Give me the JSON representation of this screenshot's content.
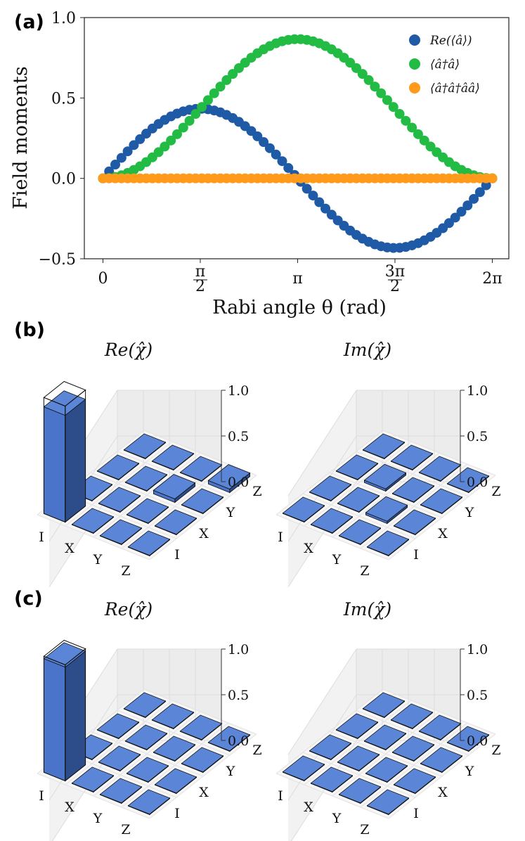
{
  "panels": {
    "a": "(a)",
    "b": "(b)",
    "c": "(c)"
  },
  "chart_data": [
    {
      "type": "scatter",
      "panel": "(a)",
      "xlabel": "Rabi angle θ (rad)",
      "ylabel": "Field moments",
      "xlim": [
        -0.3,
        6.55
      ],
      "ylim": [
        -0.5,
        1.0
      ],
      "xticks": [
        {
          "value": 0,
          "label": "0"
        },
        {
          "value": 1.5708,
          "label": "π/2"
        },
        {
          "value": 3.1416,
          "label": "π"
        },
        {
          "value": 4.7124,
          "label": "3π/2"
        },
        {
          "value": 6.2832,
          "label": "2π"
        }
      ],
      "yticks": [
        {
          "value": -0.5,
          "label": "−0.5"
        },
        {
          "value": 0.0,
          "label": "0.0"
        },
        {
          "value": 0.5,
          "label": "0.5"
        },
        {
          "value": 1.0,
          "label": "1.0"
        }
      ],
      "legend_position": "top-right",
      "n_points": 64,
      "series": [
        {
          "name": "Re(⟨â⟩)",
          "color": "#1f5aa6",
          "formula": "0.433*sin(theta)",
          "description": "amplitude ≈ 0.43, peaks near θ≈1.6, zero near π, minimum ≈ −0.43 near 3π/2"
        },
        {
          "name": "⟨â†â⟩",
          "color": "#22bb44",
          "formula": "0.866*sin(theta/2)^2",
          "description": "rises from 0 to ≈0.87 at π, returns to 0 at 2π"
        },
        {
          "name": "⟨â†â†ââ⟩",
          "color": "#ff9a1a",
          "formula": "0",
          "description": "≈ 0 everywhere"
        }
      ]
    },
    {
      "type": "bar3d",
      "panel": "(b)",
      "title": "Re(χ̂)",
      "x_categories": [
        "I",
        "X",
        "Y",
        "Z"
      ],
      "y_categories": [
        "I",
        "X",
        "Y",
        "Z"
      ],
      "zticks": [
        "0.0",
        "0.5",
        "1.0"
      ],
      "zlim": [
        0,
        1
      ],
      "values": [
        [
          0.92,
          0,
          0,
          0
        ],
        [
          0,
          0,
          0,
          0
        ],
        [
          0,
          0,
          0.03,
          0
        ],
        [
          0,
          0,
          0,
          0.03
        ]
      ],
      "ideal_values": [
        [
          1,
          0,
          0,
          0
        ],
        [
          0,
          0,
          0,
          0
        ],
        [
          0,
          0,
          0,
          0
        ],
        [
          0,
          0,
          0,
          0
        ]
      ]
    },
    {
      "type": "bar3d",
      "panel": "(b)",
      "title": "Im(χ̂)",
      "x_categories": [
        "I",
        "X",
        "Y",
        "Z"
      ],
      "y_categories": [
        "I",
        "X",
        "Y",
        "Z"
      ],
      "zticks": [
        "0.0",
        "0.5",
        "1.0"
      ],
      "zlim": [
        0,
        1
      ],
      "values": [
        [
          0,
          0,
          0,
          0
        ],
        [
          0,
          0,
          -0.02,
          0
        ],
        [
          0,
          0.02,
          0,
          0
        ],
        [
          0,
          0,
          0,
          0
        ]
      ],
      "ideal_values": [
        [
          0,
          0,
          0,
          0
        ],
        [
          0,
          0,
          0,
          0
        ],
        [
          0,
          0,
          0,
          0
        ],
        [
          0,
          0,
          0,
          0
        ]
      ]
    },
    {
      "type": "bar3d",
      "panel": "(c)",
      "title": "Re(χ̂)",
      "x_categories": [
        "I",
        "X",
        "Y",
        "Z"
      ],
      "y_categories": [
        "I",
        "X",
        "Y",
        "Z"
      ],
      "zticks": [
        "0.0",
        "0.5",
        "1.0"
      ],
      "zlim": [
        0,
        1
      ],
      "values": [
        [
          0.98,
          0,
          0,
          0
        ],
        [
          0,
          0,
          0,
          0
        ],
        [
          0,
          0,
          0,
          0
        ],
        [
          0,
          0,
          0,
          0
        ]
      ],
      "ideal_values": [
        [
          1,
          0,
          0,
          0
        ],
        [
          0,
          0,
          0,
          0
        ],
        [
          0,
          0,
          0,
          0
        ],
        [
          0,
          0,
          0,
          0
        ]
      ]
    },
    {
      "type": "bar3d",
      "panel": "(c)",
      "title": "Im(χ̂)",
      "x_categories": [
        "I",
        "X",
        "Y",
        "Z"
      ],
      "y_categories": [
        "I",
        "X",
        "Y",
        "Z"
      ],
      "zticks": [
        "0.0",
        "0.5",
        "1.0"
      ],
      "zlim": [
        0,
        1
      ],
      "values": [
        [
          0,
          0,
          0,
          0
        ],
        [
          0,
          0,
          0,
          0
        ],
        [
          0,
          0,
          0,
          0
        ],
        [
          0,
          0,
          0,
          0
        ]
      ],
      "ideal_values": [
        [
          0,
          0,
          0,
          0
        ],
        [
          0,
          0,
          0,
          0
        ],
        [
          0,
          0,
          0,
          0
        ],
        [
          0,
          0,
          0,
          0
        ]
      ]
    }
  ]
}
